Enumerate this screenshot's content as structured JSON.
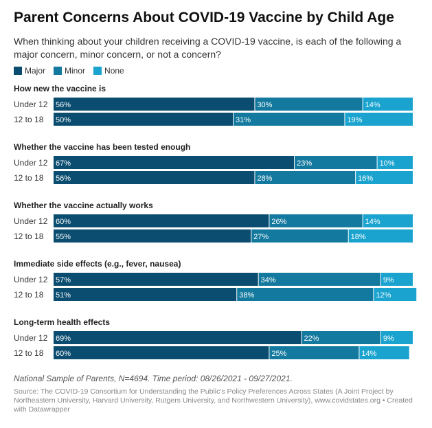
{
  "title": "Parent Concerns About COVID-19 Vaccine by Child Age",
  "subtitle": "When thinking about your children receiving a COVID-19 vaccine, is each of the following a major concern, minor concern, or not a concern?",
  "legend": [
    {
      "label": "Major",
      "color": "#0b4d70"
    },
    {
      "label": "Minor",
      "color": "#14799e"
    },
    {
      "label": "None",
      "color": "#1aa3cf"
    }
  ],
  "notes": "National Sample of Parents, N=4694. Time period: 08/26/2021 - 09/27/2021.",
  "source": "Source: The COVID-19 Consortium for Understanding the Public's Policy Preferences Across States (A Joint Project by Northeastern University, Harvard University, Rutgers University, and Northwestern University), www.covidstates.org • Created with Datawrapper",
  "chart_data": {
    "type": "bar",
    "orientation": "horizontal",
    "stacked": true,
    "unit": "%",
    "series_names": [
      "Major",
      "Minor",
      "None"
    ],
    "groups": [
      {
        "label": "How new the vaccine is",
        "rows": [
          {
            "label": "Under 12",
            "values": [
              56,
              30,
              14
            ]
          },
          {
            "label": "12 to 18",
            "values": [
              50,
              31,
              19
            ]
          }
        ]
      },
      {
        "label": "Whether the vaccine has been tested enough",
        "rows": [
          {
            "label": "Under 12",
            "values": [
              67,
              23,
              10
            ]
          },
          {
            "label": "12 to 18",
            "values": [
              56,
              28,
              16
            ]
          }
        ]
      },
      {
        "label": "Whether the vaccine actually works",
        "rows": [
          {
            "label": "Under 12",
            "values": [
              60,
              26,
              14
            ]
          },
          {
            "label": "12 to 18",
            "values": [
              55,
              27,
              18
            ]
          }
        ]
      },
      {
        "label": "Immediate side effects (e.g., fever, nausea)",
        "rows": [
          {
            "label": "Under 12",
            "values": [
              57,
              34,
              9
            ]
          },
          {
            "label": "12 to 18",
            "values": [
              51,
              38,
              12
            ]
          }
        ]
      },
      {
        "label": "Long-term health effects",
        "rows": [
          {
            "label": "Under 12",
            "values": [
              69,
              22,
              9
            ]
          },
          {
            "label": "12 to 18",
            "values": [
              60,
              25,
              14
            ]
          }
        ]
      }
    ]
  }
}
